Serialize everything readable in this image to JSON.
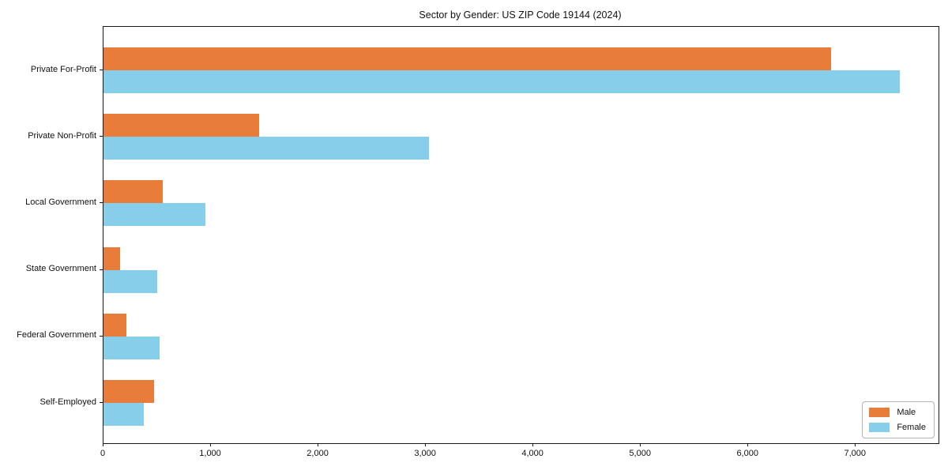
{
  "title": "Sector by Gender: US ZIP Code 19144 (2024)",
  "chart_data": {
    "type": "bar",
    "orientation": "horizontal",
    "title": "Sector by Gender: US ZIP Code 19144 (2024)",
    "xlabel": "",
    "ylabel": "",
    "categories": [
      "Private For-Profit",
      "Private Non-Profit",
      "Local Government",
      "State Government",
      "Federal Government",
      "Self-Employed"
    ],
    "series": [
      {
        "name": "Male",
        "color": "#e87d3b",
        "values": [
          6770,
          1450,
          550,
          155,
          215,
          470
        ]
      },
      {
        "name": "Female",
        "color": "#87ceeb",
        "values": [
          7410,
          3030,
          945,
          500,
          520,
          375
        ]
      }
    ],
    "xlim": [
      0,
      7770
    ],
    "x_ticks": [
      0,
      1000,
      2000,
      3000,
      4000,
      5000,
      6000,
      7000
    ],
    "x_tick_labels": [
      "0",
      "1,000",
      "2,000",
      "3,000",
      "4,000",
      "5,000",
      "6,000",
      "7,000"
    ],
    "grid": false,
    "legend": {
      "position": "lower right",
      "entries": [
        "Male",
        "Female"
      ]
    }
  }
}
